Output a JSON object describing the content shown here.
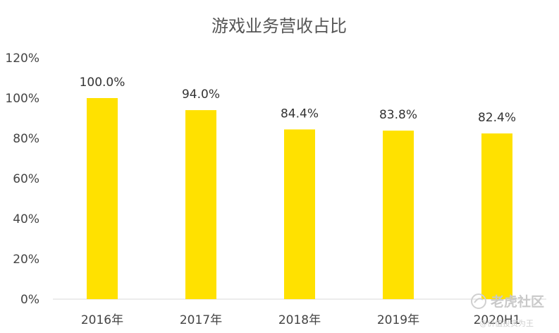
{
  "chart_data": {
    "type": "bar",
    "title": "游戏业务营收占比",
    "categories": [
      "2016年",
      "2017年",
      "2018年",
      "2019年",
      "2020H1"
    ],
    "values": [
      100.0,
      94.0,
      84.4,
      83.8,
      82.4
    ],
    "data_labels": [
      "100.0%",
      "94.0%",
      "84.4%",
      "83.8%",
      "82.4%"
    ],
    "y_ticks": [
      "0%",
      "20%",
      "40%",
      "60%",
      "80%",
      "100%",
      "120%"
    ],
    "ylim": [
      0,
      120
    ],
    "xlabel": "",
    "ylabel": "",
    "grid": false,
    "bar_color": "#FFE100"
  },
  "watermark": {
    "brand": "老虎社区",
    "sub": "@价值投资为王",
    "icon": "tiger-logo-icon"
  }
}
